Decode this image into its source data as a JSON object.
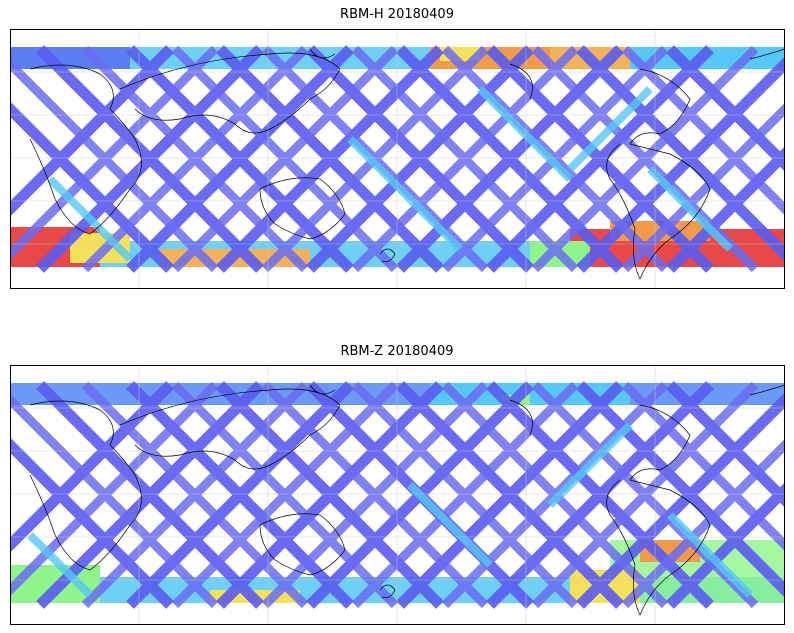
{
  "panels": [
    {
      "id": "top",
      "title": "RBM-H 20180409"
    },
    {
      "id": "bottom",
      "title": "RBM-Z 20180409"
    }
  ],
  "colors": {
    "low": "#5a5cf0",
    "mid_low": "#55c8f5",
    "mid": "#8ef58a",
    "mid_high": "#f5e05a",
    "high": "#f09a4a",
    "max": "#e84848",
    "coast": "#000000",
    "grid": "#c8c8c8",
    "frame": "#000000"
  },
  "map": {
    "projection": "plate-carree",
    "central_longitude": 160,
    "gridlines": true,
    "coastlines": true,
    "lon_range": [
      -20,
      340
    ],
    "lat_range": [
      -70,
      90
    ]
  },
  "legend": null
}
